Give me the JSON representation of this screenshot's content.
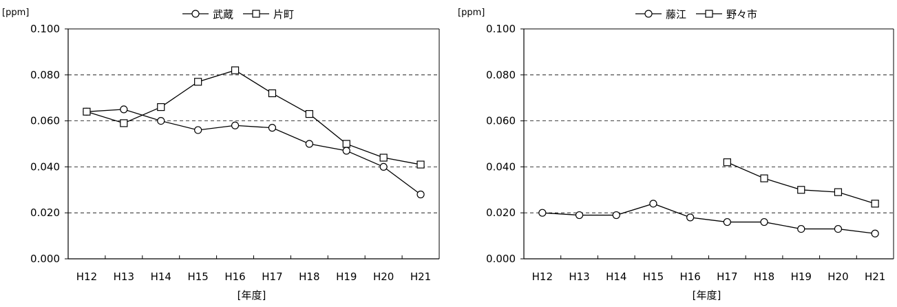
{
  "chart_data": [
    {
      "type": "line",
      "title": "",
      "ylabel": "[ppm]",
      "xlabel": "[年度]",
      "ylim": [
        0,
        0.1
      ],
      "yticks": [
        "0.000",
        "0.020",
        "0.040",
        "0.060",
        "0.080",
        "0.100"
      ],
      "grid": "horizontal-dashed",
      "legend": "top",
      "categories": [
        "H12",
        "H13",
        "H14",
        "H15",
        "H16",
        "H17",
        "H18",
        "H19",
        "H20",
        "H21"
      ],
      "series": [
        {
          "name": "武蔵",
          "marker": "circle",
          "values": [
            0.064,
            0.065,
            0.06,
            0.056,
            0.058,
            0.057,
            0.05,
            0.047,
            0.04,
            0.028
          ]
        },
        {
          "name": "片町",
          "marker": "square",
          "values": [
            0.064,
            0.059,
            0.066,
            0.077,
            0.082,
            0.072,
            0.063,
            0.05,
            0.044,
            0.041
          ]
        }
      ]
    },
    {
      "type": "line",
      "title": "",
      "ylabel": "[ppm]",
      "xlabel": "[年度]",
      "ylim": [
        0,
        0.1
      ],
      "yticks": [
        "0.000",
        "0.020",
        "0.040",
        "0.060",
        "0.080",
        "0.100"
      ],
      "grid": "horizontal-dashed",
      "legend": "top",
      "categories": [
        "H12",
        "H13",
        "H14",
        "H15",
        "H16",
        "H17",
        "H18",
        "H19",
        "H20",
        "H21"
      ],
      "series": [
        {
          "name": "藤江",
          "marker": "circle",
          "values": [
            0.02,
            0.019,
            0.019,
            0.024,
            0.018,
            0.016,
            0.016,
            0.013,
            0.013,
            0.011
          ]
        },
        {
          "name": "野々市",
          "marker": "square",
          "values": [
            null,
            null,
            null,
            null,
            null,
            0.042,
            0.035,
            0.03,
            0.029,
            0.024
          ]
        }
      ]
    }
  ]
}
